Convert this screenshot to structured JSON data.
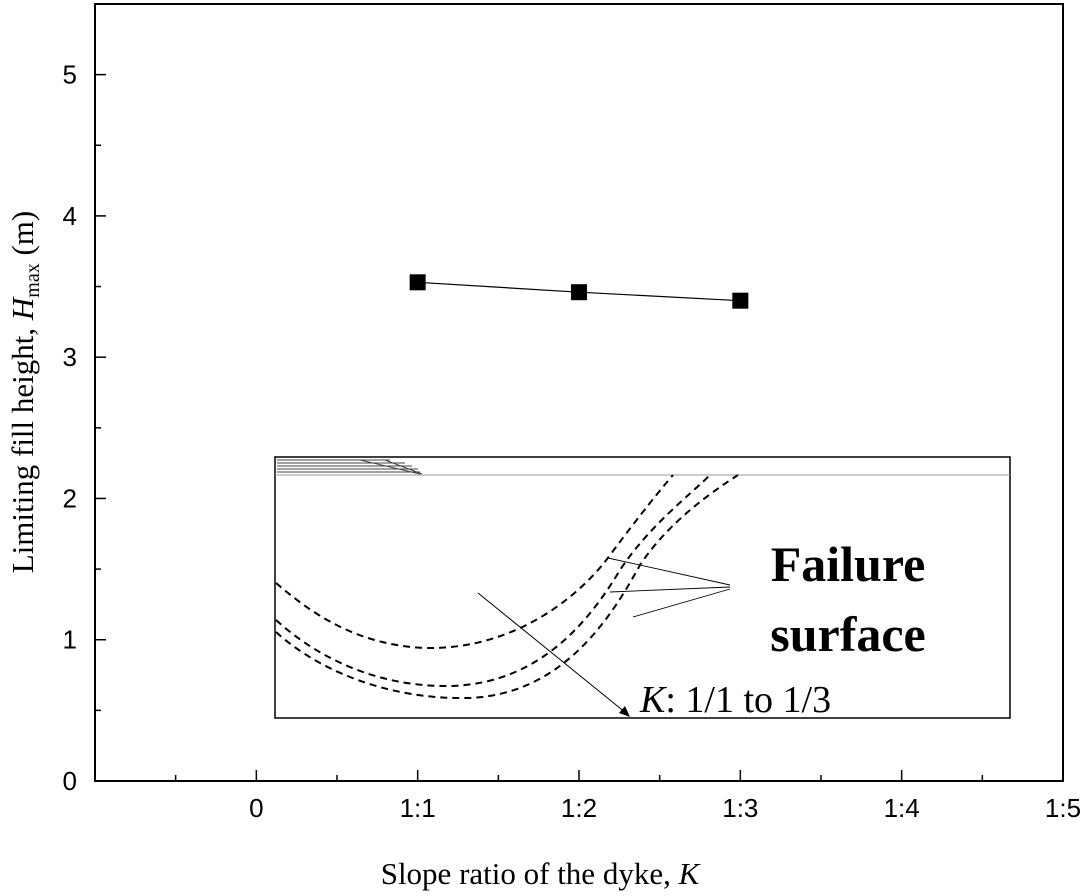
{
  "chart_data": {
    "type": "line",
    "title": "",
    "xlabel": "Slope ratio of the dyke, K",
    "ylabel": "Limiting fill height, Hmax (m)",
    "xlabel_parts": {
      "text": "Slope ratio of the dyke, ",
      "var": "K"
    },
    "ylabel_parts": {
      "text": "Limiting fill height, ",
      "var": "H",
      "sub": "max",
      "unit": " (m)"
    },
    "x_tick_values": [
      0,
      1,
      2,
      3,
      4,
      5
    ],
    "x_tick_labels": [
      "0",
      "1:1",
      "1:2",
      "1:3",
      "1:4",
      "1:5"
    ],
    "xlim": [
      -1,
      5
    ],
    "y_ticks": [
      0,
      1,
      2,
      3,
      4,
      5
    ],
    "ylim": [
      0,
      5.5
    ],
    "grid": false,
    "legend": "none",
    "series": [
      {
        "x": [
          1,
          2,
          3
        ],
        "y": [
          3.53,
          3.46,
          3.4
        ],
        "color": "#000000",
        "marker": "square"
      }
    ],
    "inset": {
      "label_line1": "Failure",
      "label_line2": "surface",
      "k_var": "K",
      "k_text": ": 1/1 to 1/3"
    }
  }
}
